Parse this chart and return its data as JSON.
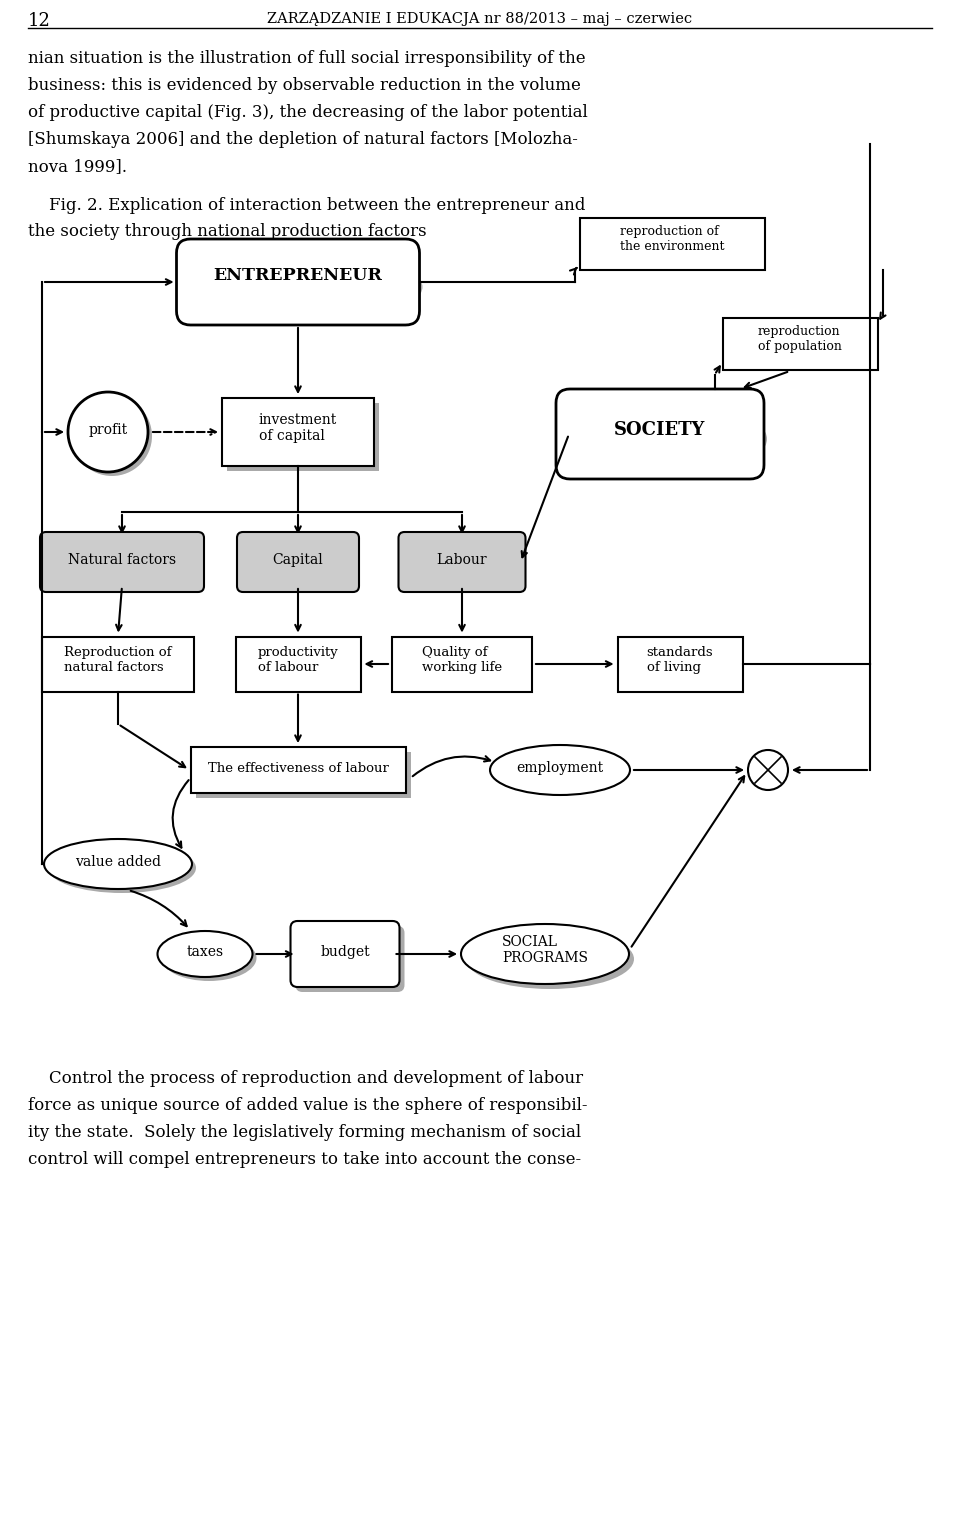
{
  "page_number": "12",
  "header": "ZARZĄDZANIE I EDUKACJA nr 88/2013 – maj – czerwiec",
  "text_top": "nian situation is the illustration of full social irresponsibility of the\nbusiness: this is evidenced by observable reduction in the volume\nof productive capital (Fig. 3), the decreasing of the labor potential\n[Shumskaya 2006] and the depletion of natural factors [Molozha-\nnova 1999].",
  "fig_caption_1": "    Fig. 2. Explication of interaction between the entrepreneur and",
  "fig_caption_2": "the society through national production factors",
  "text_bottom_1": "    Control the process of reproduction and development of labour",
  "text_bottom_2": "force as unique source of added value is the sphere of responsibil-",
  "text_bottom_3": "ity the state.  Solely the legislatively forming mechanism of social",
  "text_bottom_4": "control will compel entrepreneurs to take into account the conse-",
  "bg_color": "#ffffff"
}
